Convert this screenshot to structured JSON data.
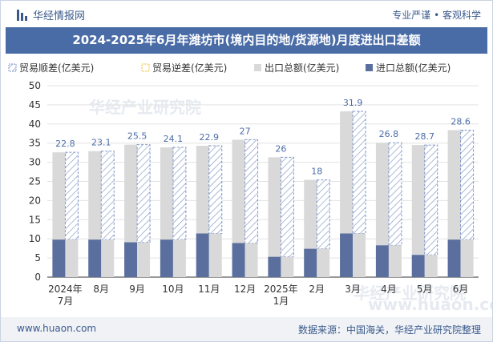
{
  "header": {
    "brand": "华经情报网",
    "tagline": "专业严谨 • 客观科学"
  },
  "footer": {
    "website": "www.huaon.com",
    "source": "数据来源：中国海关，华经产业研究院整理"
  },
  "watermark": {
    "name": "华经产业研究院",
    "url": "www.huaon.com"
  },
  "colors": {
    "export": "#d9d9d9",
    "import": "#5a6f9e",
    "surplus_outline": "#7f95c6",
    "deficit": "#f0c040",
    "title_bg": "#4a6ca6"
  },
  "chart_data": {
    "type": "bar",
    "title": "2024-2025年6月年潍坊市(境内目的地/货源地)月度进出口差额",
    "categories": [
      "2024年\n7月",
      "8月",
      "9月",
      "10月",
      "11月",
      "12月",
      "2025年\n1月",
      "2月",
      "3月",
      "4月",
      "5月",
      "6月"
    ],
    "series": [
      {
        "name": "贸易顺差(亿美元)",
        "values": [
          22.8,
          23.1,
          25.5,
          24.1,
          22.9,
          27,
          26,
          18,
          31.9,
          26.8,
          28.7,
          28.6
        ]
      },
      {
        "name": "贸易逆差(亿美元)",
        "values": [
          0,
          0,
          0,
          0,
          0,
          0,
          0,
          0,
          0,
          0,
          0,
          0
        ]
      },
      {
        "name": "出口总额(亿美元)",
        "values": [
          32.6,
          32.9,
          34.6,
          33.9,
          34.3,
          35.9,
          31.3,
          25.4,
          43.3,
          35.1,
          34.5,
          38.4
        ]
      },
      {
        "name": "进口总额(亿美元)",
        "values": [
          9.8,
          9.8,
          9.1,
          9.8,
          11.4,
          8.9,
          5.3,
          7.4,
          11.4,
          8.3,
          5.8,
          9.8
        ]
      }
    ],
    "data_labels": [
      "22.8",
      "23.1",
      "25.5",
      "24.1",
      "22.9",
      "27",
      "26",
      "18",
      "31.9",
      "26.8",
      "28.7",
      "28.6"
    ],
    "ylim": [
      0,
      50
    ],
    "yticks": [
      "0",
      "5",
      "10",
      "15",
      "20",
      "25",
      "30",
      "35",
      "40",
      "45",
      "50"
    ],
    "grid": true,
    "legend": "top"
  }
}
